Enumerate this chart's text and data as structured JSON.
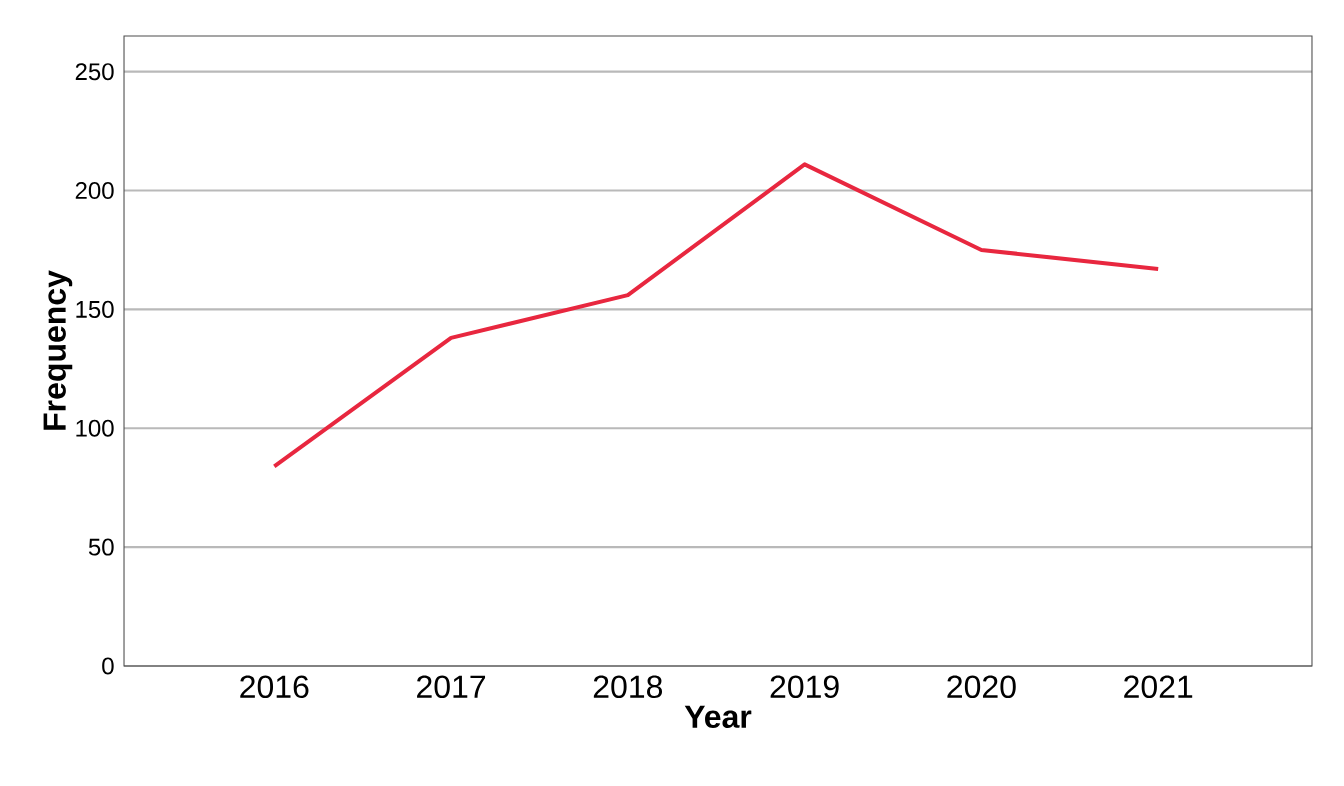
{
  "chart_data": {
    "type": "line",
    "xlabel": "Year",
    "ylabel": "Frequency",
    "categories": [
      "2016",
      "2017",
      "2018",
      "2019",
      "2020",
      "2021"
    ],
    "values": [
      84,
      138,
      156,
      211,
      175,
      167
    ],
    "color": "#e8273f",
    "ylim": [
      0,
      265
    ],
    "yticks": [
      0,
      50,
      100,
      150,
      200,
      250
    ],
    "grid": "y"
  }
}
